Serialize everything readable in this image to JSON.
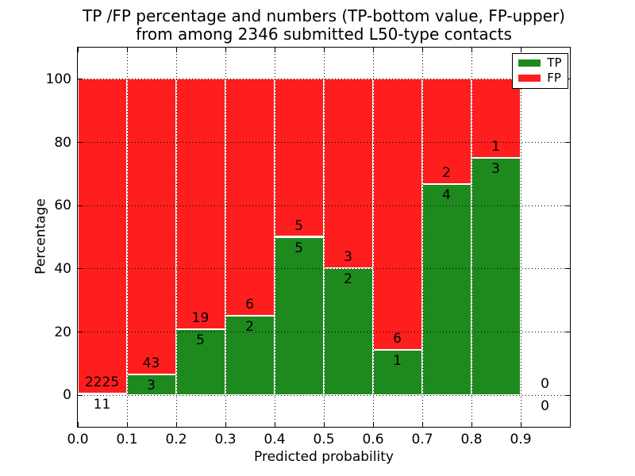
{
  "title": {
    "line1": "TP /FP percentage and numbers (TP-bottom value, FP-upper)",
    "line2": "from among 2346 submitted L50-type contacts"
  },
  "x_axis": {
    "label": "Predicted probability",
    "ticks": [
      "0.0",
      "0.1",
      "0.2",
      "0.3",
      "0.4",
      "0.5",
      "0.6",
      "0.7",
      "0.8",
      "0.9"
    ]
  },
  "y_axis": {
    "label": "Percentage",
    "ticks": [
      "0",
      "20",
      "40",
      "60",
      "80",
      "100"
    ]
  },
  "legend": {
    "position": "upper right",
    "items": [
      {
        "label": "TP",
        "color": "#1e8a1e"
      },
      {
        "label": "FP",
        "color": "#ff1e1e"
      }
    ]
  },
  "chart_data": {
    "type": "bar",
    "stacked": true,
    "normalized": "each bin stacks to 100%",
    "title": "TP /FP percentage and numbers (TP-bottom value, FP-upper) from among 2346 submitted L50-type contacts",
    "xlabel": "Predicted probability",
    "ylabel": "Percentage",
    "xlim": [
      0.0,
      1.0
    ],
    "ylim": [
      -10,
      110
    ],
    "grid": true,
    "grid_style": "dotted",
    "legend_position": "upper right",
    "bin_edges": [
      0.0,
      0.1,
      0.2,
      0.3,
      0.4,
      0.5,
      0.6,
      0.7,
      0.8,
      0.9,
      1.0
    ],
    "series": [
      {
        "name": "TP",
        "color": "#1e8a1e",
        "counts": [
          11,
          3,
          5,
          2,
          5,
          2,
          1,
          4,
          3,
          0
        ]
      },
      {
        "name": "FP",
        "color": "#ff1e1e",
        "counts": [
          2225,
          43,
          19,
          6,
          5,
          3,
          6,
          2,
          1,
          0
        ]
      }
    ],
    "tp_percent_of_bin": [
      0.49,
      6.52,
      20.83,
      25.0,
      50.0,
      40.0,
      14.29,
      66.67,
      75.0,
      0.0
    ],
    "total_contacts": 2346
  }
}
